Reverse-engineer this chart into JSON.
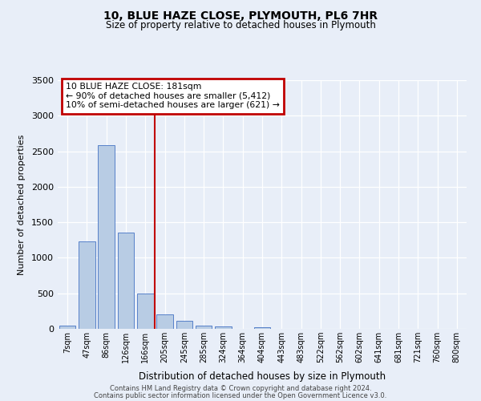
{
  "title": "10, BLUE HAZE CLOSE, PLYMOUTH, PL6 7HR",
  "subtitle": "Size of property relative to detached houses in Plymouth",
  "xlabel": "Distribution of detached houses by size in Plymouth",
  "ylabel": "Number of detached properties",
  "bar_labels": [
    "7sqm",
    "47sqm",
    "86sqm",
    "126sqm",
    "166sqm",
    "205sqm",
    "245sqm",
    "285sqm",
    "324sqm",
    "364sqm",
    "404sqm",
    "443sqm",
    "483sqm",
    "522sqm",
    "562sqm",
    "602sqm",
    "641sqm",
    "681sqm",
    "721sqm",
    "760sqm",
    "800sqm"
  ],
  "bar_values": [
    50,
    1230,
    2590,
    1350,
    500,
    200,
    110,
    50,
    30,
    0,
    20,
    0,
    0,
    0,
    0,
    0,
    0,
    0,
    0,
    0,
    0
  ],
  "bar_color": "#b8cce4",
  "bar_edge_color": "#4472c4",
  "ylim": [
    0,
    3500
  ],
  "yticks": [
    0,
    500,
    1000,
    1500,
    2000,
    2500,
    3000,
    3500
  ],
  "vline_color": "#c00000",
  "annotation_title": "10 BLUE HAZE CLOSE: 181sqm",
  "annotation_line1": "← 90% of detached houses are smaller (5,412)",
  "annotation_line2": "10% of semi-detached houses are larger (621) →",
  "annotation_box_color": "#c00000",
  "footer1": "Contains HM Land Registry data © Crown copyright and database right 2024.",
  "footer2": "Contains public sector information licensed under the Open Government Licence v3.0.",
  "bg_color": "#e8eef8",
  "plot_bg_color": "#e8eef8"
}
